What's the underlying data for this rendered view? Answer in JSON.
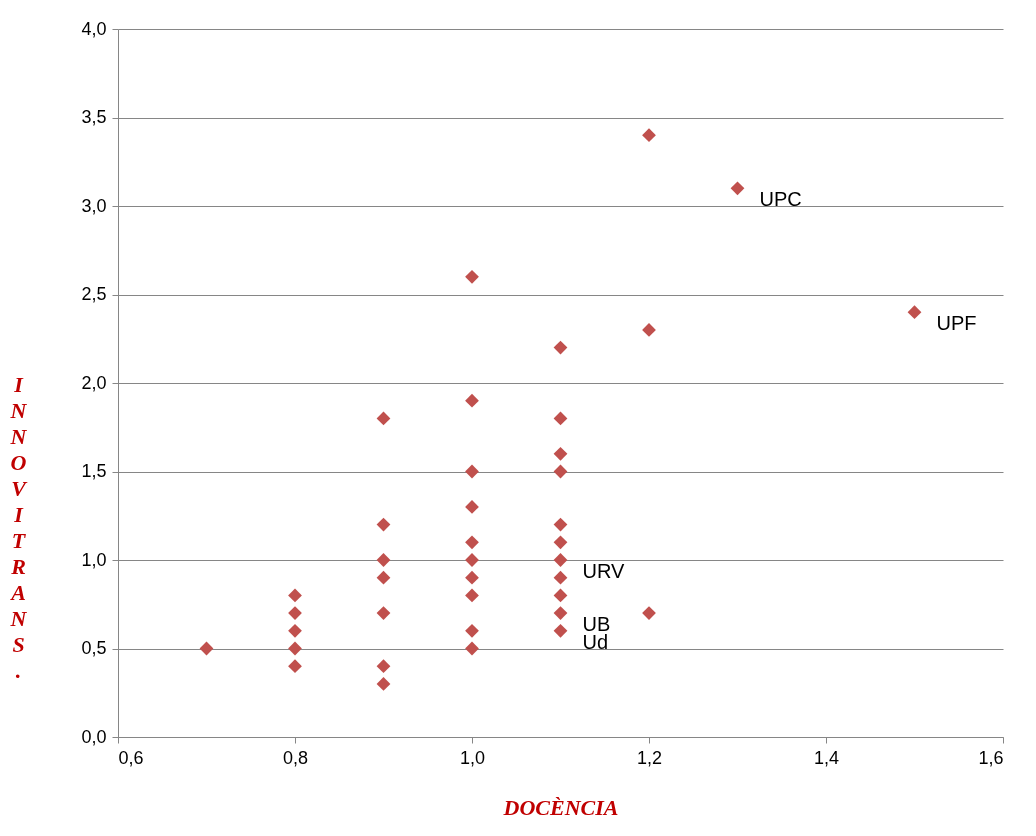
{
  "chart_data": {
    "type": "scatter",
    "xlabel": "DOCÈNCIA",
    "ylabel": "INNOV I TRANS.",
    "marker": "diamond",
    "grid": "y",
    "xlim": [
      0.6,
      1.6
    ],
    "xticks": [
      {
        "value": 0.6,
        "label": "0,6"
      },
      {
        "value": 0.8,
        "label": "0,8"
      },
      {
        "value": 1.0,
        "label": "1,0"
      },
      {
        "value": 1.2,
        "label": "1,2"
      },
      {
        "value": 1.4,
        "label": "1,4"
      },
      {
        "value": 1.6,
        "label": "1,6"
      }
    ],
    "ylim": [
      0,
      4
    ],
    "yticks": [
      {
        "value": 0,
        "label": "0,0"
      },
      {
        "value": 0.5,
        "label": "0,5"
      },
      {
        "value": 1.0,
        "label": "1,0"
      },
      {
        "value": 1.5,
        "label": "1,5"
      },
      {
        "value": 2.0,
        "label": "2,0"
      },
      {
        "value": 2.5,
        "label": "2,5"
      },
      {
        "value": 3.0,
        "label": "3,0"
      },
      {
        "value": 3.5,
        "label": "3,5"
      },
      {
        "value": 4.0,
        "label": "4,0"
      }
    ],
    "series": [
      {
        "color": "#c0504d",
        "x": [
          0.7,
          0.8,
          0.8,
          0.8,
          0.8,
          0.8,
          0.9,
          0.9,
          0.9,
          0.9,
          0.9,
          0.9,
          0.9,
          1.0,
          1.0,
          1.0,
          1.0,
          1.0,
          1.0,
          1.0,
          1.0,
          1.0,
          1.0,
          1.1,
          1.1,
          1.1,
          1.1,
          1.1,
          1.1,
          1.1,
          1.1,
          1.1,
          1.1,
          1.1,
          1.2,
          1.2,
          1.2,
          1.3,
          1.5
        ],
        "values": [
          0.5,
          0.8,
          0.7,
          0.6,
          0.5,
          0.4,
          1.8,
          1.2,
          1.0,
          0.9,
          0.7,
          0.4,
          0.3,
          2.6,
          1.9,
          1.5,
          1.3,
          1.1,
          1.0,
          0.9,
          0.8,
          0.6,
          0.5,
          2.2,
          1.8,
          1.6,
          1.5,
          1.2,
          1.1,
          1.0,
          0.9,
          0.8,
          0.7,
          0.6,
          3.4,
          2.3,
          0.7,
          3.1,
          2.4
        ]
      }
    ],
    "annotations": [
      {
        "text": "UPC",
        "x": 1.3,
        "y": 3.1
      },
      {
        "text": "UPF",
        "x": 1.5,
        "y": 2.4
      },
      {
        "text": "URV",
        "x": 1.1,
        "y": 1.0
      },
      {
        "text": "UB",
        "x": 1.1,
        "y": 0.7
      },
      {
        "text": "Ud",
        "x": 1.1,
        "y": 0.6
      }
    ]
  }
}
